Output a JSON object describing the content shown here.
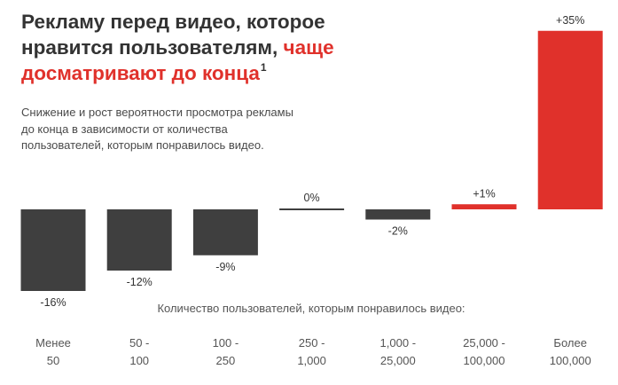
{
  "headline": {
    "text_before": "Рекламу перед видео, которое нравится пользователям, ",
    "text_accent": "чаще досматривают до конца",
    "footnote_mark": "1"
  },
  "description": "Снижение и рост вероятности просмотра рекламы до конца в зависимости от количества пользователей, которым понравилось видео.",
  "colors": {
    "negative": "#3f3f3f",
    "positive": "#e0312b",
    "zero": "#3f3f3f",
    "headline_text": "#333333",
    "headline_accent": "#e0312b",
    "body_text": "#4a4a4a"
  },
  "chart_data": {
    "type": "bar",
    "title": "",
    "xlabel": "Количество пользователей, которым понравилось видео:",
    "ylabel": "",
    "ylim": [
      -16,
      35
    ],
    "grid": false,
    "legend": "none",
    "categories": [
      [
        "Менее",
        "50"
      ],
      [
        "50 -",
        "100"
      ],
      [
        "100 -",
        "250"
      ],
      [
        "250 -",
        "1,000"
      ],
      [
        "1,000 -",
        "25,000"
      ],
      [
        "25,000 -",
        "100,000"
      ],
      [
        "Более",
        "100,000"
      ]
    ],
    "values": [
      -16,
      -12,
      -9,
      0,
      -2,
      1,
      35
    ],
    "value_labels": [
      "-16%",
      "-12%",
      "-9%",
      "0%",
      "-2%",
      "+1%",
      "+35%"
    ]
  }
}
